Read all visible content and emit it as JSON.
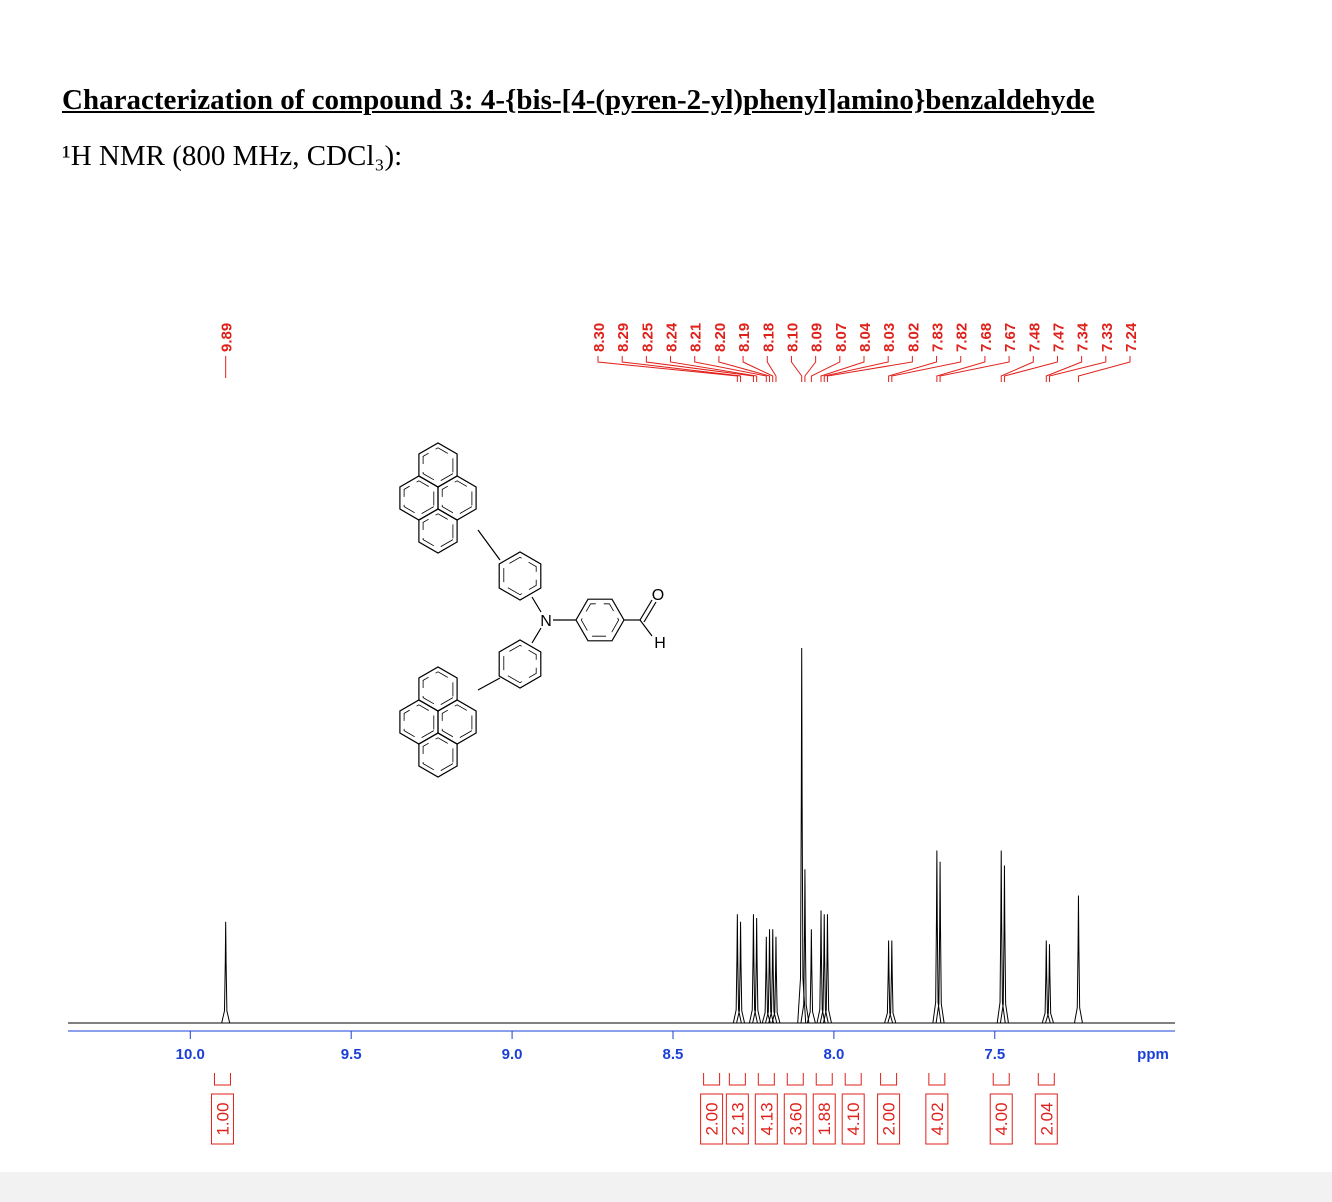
{
  "header": {
    "title": "Characterization of compound 3: 4-{bis-[4-(pyren-2-yl)phenyl]amino}benzaldehyde",
    "subtitle": "¹H NMR (800 MHz, CDCl₃):"
  },
  "structure": {
    "atoms": [
      "N",
      "O",
      "H"
    ]
  },
  "chart_data": {
    "type": "nmr",
    "x_label": "ppm",
    "xlim": [
      10.38,
      6.94
    ],
    "xticks": [
      {
        "value": 10,
        "label": "10.0"
      },
      9.5,
      {
        "value": 9,
        "label": "9.0"
      },
      8.5,
      {
        "value": 8,
        "label": "8.0"
      },
      7.5
    ],
    "color": "#000000",
    "label_color": "#e0201b",
    "axis_color": "#1a3fd6",
    "peaks": {
      "values": [
        9.89,
        8.3,
        8.29,
        8.25,
        8.24,
        8.21,
        8.2,
        8.19,
        8.18,
        8.1,
        8.09,
        8.07,
        8.04,
        8.03,
        8.02,
        7.83,
        7.82,
        7.68,
        7.67,
        7.48,
        7.47,
        7.34,
        7.33,
        7.24
      ],
      "value_labels": [
        "9.89",
        "8.30",
        "8.29",
        "8.25",
        "8.24",
        "8.21",
        "8.20",
        "8.19",
        "8.18",
        "8.10",
        "8.09",
        "8.07",
        "8.04",
        "8.03",
        "8.02",
        "7.83",
        "7.82",
        "7.68",
        "7.67",
        "7.48",
        "7.47",
        "7.34",
        "7.33",
        "7.24"
      ],
      "heights": [
        27,
        29,
        27,
        29,
        28,
        23,
        25,
        25,
        23,
        100,
        41,
        25,
        30,
        29,
        29,
        22,
        22,
        46,
        43,
        46,
        42,
        22,
        21,
        34
      ]
    },
    "integrals": {
      "values": [
        1.0,
        2.0,
        2.13,
        4.13,
        3.6,
        1.88,
        4.1,
        2.0,
        4.02,
        4.0,
        2.04
      ],
      "value_labels": [
        "1.00",
        "2.00",
        "2.13",
        "4.13",
        "3.60",
        "1.88",
        "4.10",
        "2.00",
        "4.02",
        "4.00",
        "2.04"
      ],
      "x": [
        9.9,
        8.38,
        8.3,
        8.21,
        8.12,
        8.03,
        7.94,
        7.83,
        7.68,
        7.48,
        7.34
      ]
    }
  }
}
